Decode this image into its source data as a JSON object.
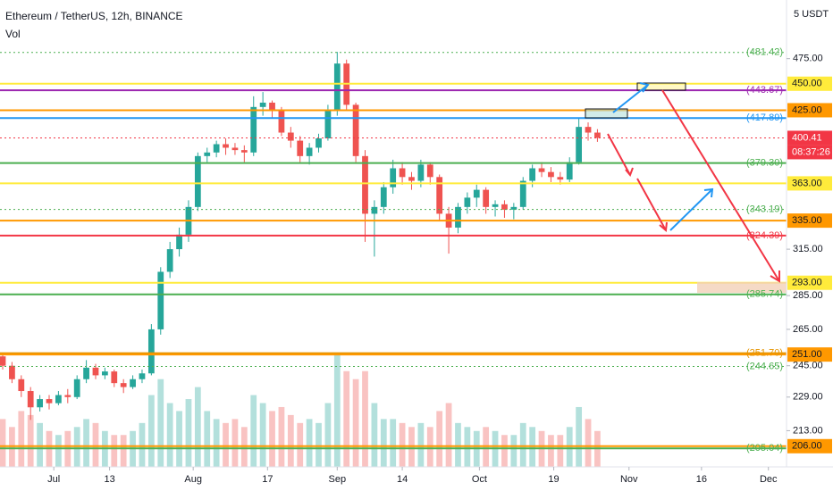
{
  "chart_data": {
    "type": "candlestick",
    "title": "Ethereum / TetherUS, 12h, BINANCE",
    "volume_label": "Vol",
    "unit_label": "5 USDT",
    "log_scale": true,
    "ylim": [
      197,
      539
    ],
    "vlim": [
      0,
      160
    ],
    "xlim": [
      -0.29,
      84.35
    ],
    "up_color": "#26a69a",
    "down_color": "#ef5350",
    "open": [
      250,
      245,
      238,
      232,
      224,
      228,
      226,
      230,
      229,
      238,
      244,
      240,
      242,
      236,
      234,
      238,
      241,
      265,
      300,
      315,
      325,
      345,
      385,
      388,
      395,
      392,
      390,
      388,
      428,
      432,
      425,
      405,
      398,
      385,
      392,
      400,
      425,
      470,
      430,
      385,
      340,
      345,
      360,
      375,
      368,
      365,
      378,
      368,
      340,
      330,
      345,
      352,
      358,
      345,
      347,
      343,
      345,
      365,
      375,
      372,
      368,
      366,
      380,
      410,
      405
    ],
    "high": [
      252,
      247,
      240,
      234,
      230,
      230,
      232,
      233,
      240,
      248,
      246,
      244,
      243,
      238,
      240,
      243,
      268,
      303,
      320,
      330,
      350,
      388,
      392,
      398,
      400,
      396,
      394,
      438,
      442,
      434,
      428,
      410,
      402,
      396,
      404,
      430,
      482,
      474,
      432,
      390,
      350,
      364,
      382,
      380,
      372,
      382,
      380,
      370,
      345,
      348,
      356,
      362,
      360,
      350,
      350,
      348,
      368,
      378,
      380,
      376,
      372,
      384,
      418,
      414,
      408
    ],
    "low": [
      243,
      236,
      229,
      218,
      222,
      223,
      225,
      226,
      228,
      236,
      238,
      238,
      234,
      231,
      233,
      236,
      240,
      262,
      296,
      310,
      320,
      342,
      380,
      384,
      386,
      386,
      380,
      385,
      420,
      418,
      402,
      392,
      380,
      378,
      388,
      398,
      420,
      425,
      380,
      320,
      310,
      340,
      355,
      362,
      358,
      360,
      362,
      335,
      312,
      326,
      340,
      345,
      340,
      338,
      337,
      336,
      343,
      360,
      368,
      364,
      362,
      364,
      378,
      398,
      397
    ],
    "close": [
      245,
      238,
      232,
      224,
      228,
      226,
      230,
      229,
      238,
      244,
      240,
      242,
      236,
      234,
      238,
      241,
      265,
      300,
      315,
      325,
      345,
      385,
      388,
      395,
      392,
      390,
      388,
      428,
      432,
      425,
      405,
      398,
      385,
      392,
      400,
      425,
      470,
      430,
      385,
      340,
      345,
      360,
      375,
      368,
      365,
      378,
      368,
      340,
      330,
      345,
      352,
      358,
      345,
      347,
      343,
      345,
      365,
      375,
      372,
      368,
      366,
      380,
      410,
      405,
      400.41
    ],
    "volume": [
      60,
      50,
      70,
      65,
      55,
      45,
      40,
      45,
      50,
      60,
      55,
      45,
      40,
      40,
      45,
      55,
      90,
      110,
      80,
      70,
      85,
      100,
      70,
      60,
      55,
      60,
      50,
      90,
      80,
      70,
      75,
      65,
      55,
      60,
      55,
      80,
      140,
      120,
      110,
      120,
      80,
      60,
      60,
      55,
      50,
      55,
      50,
      70,
      80,
      55,
      50,
      45,
      50,
      45,
      40,
      40,
      55,
      50,
      45,
      40,
      40,
      50,
      75,
      60,
      45
    ],
    "xticks": [
      {
        "value": 5.5,
        "label": "Jul"
      },
      {
        "value": 11.5,
        "label": "13"
      },
      {
        "value": 20.5,
        "label": "Aug"
      },
      {
        "value": 28.5,
        "label": "17"
      },
      {
        "value": 36,
        "label": "Sep"
      },
      {
        "value": 43,
        "label": "14"
      },
      {
        "value": 51.3,
        "label": "Oct"
      },
      {
        "value": 59.3,
        "label": "19"
      },
      {
        "value": 67.4,
        "label": "Nov"
      },
      {
        "value": 75.2,
        "label": "16"
      },
      {
        "value": 82.4,
        "label": "Dec"
      }
    ],
    "yticks": [
      {
        "value": 475,
        "label": "475.00"
      },
      {
        "value": 315,
        "label": "315.00"
      },
      {
        "value": 285,
        "label": "285.00"
      },
      {
        "value": 265,
        "label": "265.00"
      },
      {
        "value": 245,
        "label": "245.00"
      },
      {
        "value": 229,
        "label": "229.00"
      },
      {
        "value": 213,
        "label": "213.00"
      }
    ],
    "levels": [
      {
        "value": 481.42,
        "label": "(481.42)",
        "color": "#4caf50",
        "dotted": true,
        "boxed": false
      },
      {
        "value": 450,
        "label": "450.00",
        "color": "#ffeb3b",
        "dotted": false,
        "boxed": true
      },
      {
        "value": 443.67,
        "label": "(443.67)",
        "color": "#9c27b0",
        "dotted": false,
        "boxed": false
      },
      {
        "value": 425,
        "label": "425.00",
        "color": "#ff9800",
        "dotted": false,
        "boxed": true
      },
      {
        "value": 417.89,
        "label": "(417.89)",
        "color": "#2196f3",
        "dotted": false,
        "boxed": false
      },
      {
        "value": 400.41,
        "label": "400.41",
        "color": "#f23645",
        "dotted": true,
        "boxed": true
      },
      {
        "value": 379.3,
        "label": "(379.30)",
        "color": "#4caf50",
        "dotted": false,
        "boxed": false
      },
      {
        "value": 363,
        "label": "363.00",
        "color": "#ffeb3b",
        "dotted": false,
        "boxed": true
      },
      {
        "value": 343.19,
        "label": "(343.19)",
        "color": "#4caf50",
        "dotted": true,
        "boxed": false
      },
      {
        "value": 335,
        "label": "335.00",
        "color": "#ff9800",
        "dotted": false,
        "boxed": true
      },
      {
        "value": 324.39,
        "label": "(324.39)",
        "color": "#f23645",
        "dotted": false,
        "boxed": false
      },
      {
        "value": 293,
        "label": "293.00",
        "color": "#ffeb3b",
        "dotted": false,
        "boxed": true
      },
      {
        "value": 285.74,
        "label": "(285.74)",
        "color": "#4caf50",
        "dotted": false,
        "boxed": false
      },
      {
        "value": 251.7,
        "label": "(251.70)",
        "color": "#e69500",
        "dotted": false,
        "boxed": false
      },
      {
        "value": 251,
        "label": "251.00",
        "color": "#ff9800",
        "dotted": false,
        "boxed": true
      },
      {
        "value": 244.65,
        "label": "(244.65)",
        "color": "#4caf50",
        "dotted": true,
        "boxed": false
      },
      {
        "value": 206,
        "label": "206.00",
        "color": "#ff9800",
        "dotted": false,
        "boxed": true
      },
      {
        "value": 205.04,
        "label": "(205.04)",
        "color": "#4caf50",
        "dotted": false,
        "boxed": false
      }
    ],
    "countdown": "08:37:26"
  }
}
